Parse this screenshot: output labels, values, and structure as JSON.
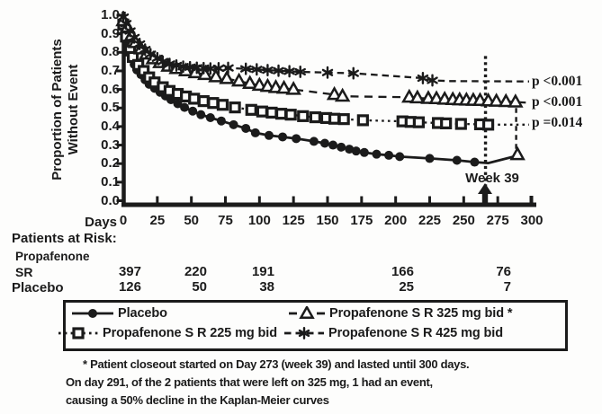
{
  "colors": {
    "ink": "#1b1b1b",
    "background": "#fdfdfc"
  },
  "y_axis": {
    "title_line1": "Proportion of Patients",
    "title_line2": "Without Event",
    "tick_labels": [
      "1.0",
      "0.9",
      "0.8",
      "0.7",
      "0.6",
      "0.5",
      "0.4",
      "0.3",
      "0.2",
      "0.1",
      "0.0"
    ]
  },
  "x_axis": {
    "title": "Days",
    "tick_labels": [
      "0",
      "25",
      "50",
      "75",
      "100",
      "125",
      "150",
      "175",
      "200",
      "225",
      "250",
      "275",
      "300"
    ]
  },
  "annotations": {
    "week39_label": "Week 39",
    "footnote_lines": [
      "* Patient closeout started on Day 273 (week 39) and lasted until 300 days.",
      "On day 291, of the 2 patients that were left on 325 mg, 1 had an event,",
      "causing a 50% decline in the Kaplan-Meier curves"
    ]
  },
  "patients_at_risk": {
    "heading": "Patients at Risk:",
    "group1_label_line1": "Propafenone",
    "group1_label_line2": "SR",
    "group1_values": [
      "397",
      "220",
      "191",
      "166",
      "76"
    ],
    "group2_label": "Placebo",
    "group2_values": [
      "126",
      "50",
      "38",
      "25",
      "7"
    ]
  },
  "legend": {
    "items": [
      {
        "label": "Placebo",
        "marker": "circle-filled",
        "line": "solid"
      },
      {
        "label": "Propafenone S R 325 mg bid *",
        "marker": "triangle-open",
        "line": "dashed"
      },
      {
        "label": "Propafenone S R 225 mg bid",
        "marker": "square-open",
        "line": "dotted"
      },
      {
        "label": "Propafenone S R 425 mg bid",
        "marker": "asterisk",
        "line": "dashed-short"
      }
    ]
  },
  "chart_data": {
    "type": "line",
    "title": "Kaplan-Meier curves: Proportion of Patients Without Event",
    "xlabel": "Days",
    "ylabel": "Proportion of Patients Without Event",
    "xlim": [
      0,
      300
    ],
    "ylim": [
      0.0,
      1.0
    ],
    "x_ticks": [
      0,
      25,
      50,
      75,
      100,
      125,
      150,
      175,
      200,
      225,
      250,
      275,
      300
    ],
    "y_ticks": [
      0.0,
      0.1,
      0.2,
      0.3,
      0.4,
      0.5,
      0.6,
      0.7,
      0.8,
      0.9,
      1.0
    ],
    "grid": false,
    "legend_position": "bottom-box",
    "week39_line": {
      "day": 266,
      "top_value": 0.78,
      "label": "Week 39"
    },
    "p_annotations": [
      {
        "text": "p <0.001",
        "value": 0.643
      },
      {
        "text": "p <0.001",
        "value": 0.528
      },
      {
        "text": "p =0.014",
        "value": 0.418
      }
    ],
    "series": [
      {
        "name": "Placebo",
        "marker": "circle-filled",
        "line_style": "solid",
        "points": [
          [
            0,
            0.95
          ],
          [
            2,
            0.86
          ],
          [
            4,
            0.8
          ],
          [
            6,
            0.765
          ],
          [
            8,
            0.735
          ],
          [
            10,
            0.705
          ],
          [
            13,
            0.68
          ],
          [
            16,
            0.652
          ],
          [
            19,
            0.628
          ],
          [
            23,
            0.606
          ],
          [
            27,
            0.585
          ],
          [
            31,
            0.565
          ],
          [
            35,
            0.545
          ],
          [
            40,
            0.523
          ],
          [
            45,
            0.503
          ],
          [
            51,
            0.483
          ],
          [
            57,
            0.464
          ],
          [
            64,
            0.448
          ],
          [
            72,
            0.43
          ],
          [
            81,
            0.41
          ],
          [
            90,
            0.39
          ],
          [
            97,
            0.366
          ],
          [
            107,
            0.352
          ],
          [
            117,
            0.344
          ],
          [
            127,
            0.335
          ],
          [
            140,
            0.32
          ],
          [
            148,
            0.31
          ],
          [
            154,
            0.3
          ],
          [
            160,
            0.289
          ],
          [
            166,
            0.278
          ],
          [
            171,
            0.268
          ],
          [
            177,
            0.26
          ],
          [
            186,
            0.251
          ],
          [
            195,
            0.245
          ],
          [
            203,
            0.238
          ],
          [
            225,
            0.228
          ],
          [
            245,
            0.218
          ],
          [
            258,
            0.208
          ]
        ],
        "line_extra": [
          [
            268,
            0.203
          ],
          [
            289,
            0.242
          ]
        ]
      },
      {
        "name": "Propafenone S R 225 mg bid",
        "marker": "square-open",
        "line_style": "dotted",
        "points": [
          [
            0,
            0.95
          ],
          [
            2,
            0.885
          ],
          [
            5,
            0.81
          ],
          [
            7,
            0.775
          ],
          [
            11,
            0.732
          ],
          [
            15,
            0.7
          ],
          [
            19,
            0.665
          ],
          [
            23,
            0.638
          ],
          [
            29,
            0.612
          ],
          [
            34,
            0.592
          ],
          [
            40,
            0.576
          ],
          [
            46,
            0.562
          ],
          [
            52,
            0.55
          ],
          [
            59,
            0.537
          ],
          [
            66,
            0.527
          ],
          [
            73,
            0.517
          ],
          [
            82,
            0.503
          ],
          [
            94,
            0.49
          ],
          [
            102,
            0.481
          ],
          [
            109,
            0.475
          ],
          [
            116,
            0.469
          ],
          [
            123,
            0.464
          ],
          [
            132,
            0.456
          ],
          [
            141,
            0.45
          ],
          [
            149,
            0.446
          ],
          [
            155,
            0.442
          ],
          [
            162,
            0.44
          ],
          [
            176,
            0.434
          ],
          [
            205,
            0.428
          ],
          [
            211,
            0.425
          ],
          [
            217,
            0.423
          ],
          [
            231,
            0.419
          ],
          [
            237,
            0.417
          ],
          [
            248,
            0.414
          ],
          [
            262,
            0.412
          ],
          [
            268,
            0.41
          ]
        ],
        "line_extra": [
          [
            298,
            0.41
          ]
        ]
      },
      {
        "name": "Propafenone S R 325 mg bid *",
        "marker": "triangle-open",
        "line_style": "dashed",
        "points": [
          [
            0,
            0.97
          ],
          [
            3,
            0.935
          ],
          [
            6,
            0.89
          ],
          [
            9,
            0.852
          ],
          [
            13,
            0.818
          ],
          [
            17,
            0.79
          ],
          [
            22,
            0.765
          ],
          [
            27,
            0.744
          ],
          [
            33,
            0.725
          ],
          [
            39,
            0.712
          ],
          [
            46,
            0.7
          ],
          [
            53,
            0.69
          ],
          [
            60,
            0.68
          ],
          [
            68,
            0.668
          ],
          [
            76,
            0.658
          ],
          [
            85,
            0.645
          ],
          [
            93,
            0.632
          ],
          [
            100,
            0.622
          ],
          [
            106,
            0.616
          ],
          [
            112,
            0.61
          ],
          [
            118,
            0.606
          ],
          [
            125,
            0.6
          ],
          [
            155,
            0.572
          ],
          [
            161,
            0.563
          ],
          [
            210,
            0.558
          ],
          [
            216,
            0.554
          ],
          [
            224,
            0.551
          ],
          [
            230,
            0.55
          ],
          [
            236,
            0.547
          ],
          [
            242,
            0.545
          ],
          [
            247,
            0.543
          ],
          [
            252,
            0.542
          ],
          [
            257,
            0.541
          ],
          [
            262,
            0.54
          ],
          [
            268,
            0.538
          ],
          [
            274,
            0.536
          ],
          [
            281,
            0.534
          ],
          [
            288,
            0.532
          ]
        ],
        "line_extra": [
          [
            298,
            0.528
          ]
        ],
        "drop": {
          "day": 288.5,
          "from_value": 0.5,
          "to_value": 0.275,
          "end_marker": [
            289.5,
            0.248
          ]
        }
      },
      {
        "name": "Propafenone S R 425 mg bid",
        "marker": "asterisk",
        "line_style": "dashed-short",
        "points": [
          [
            0,
            0.99
          ],
          [
            2,
            0.955
          ],
          [
            5,
            0.915
          ],
          [
            8,
            0.88
          ],
          [
            12,
            0.845
          ],
          [
            16,
            0.815
          ],
          [
            20,
            0.79
          ],
          [
            25,
            0.768
          ],
          [
            29,
            0.75
          ],
          [
            34,
            0.737
          ],
          [
            39,
            0.729
          ],
          [
            44,
            0.723
          ],
          [
            49,
            0.72
          ],
          [
            54,
            0.717
          ],
          [
            59,
            0.715
          ],
          [
            64,
            0.713
          ],
          [
            70,
            0.714
          ],
          [
            77,
            0.716
          ],
          [
            90,
            0.711
          ],
          [
            98,
            0.708
          ],
          [
            106,
            0.704
          ],
          [
            114,
            0.701
          ],
          [
            122,
            0.698
          ],
          [
            130,
            0.695
          ],
          [
            150,
            0.691
          ],
          [
            169,
            0.687
          ],
          [
            220,
            0.661
          ],
          [
            227,
            0.649
          ]
        ],
        "line_extra": [
          [
            240,
            0.645
          ],
          [
            298,
            0.643
          ]
        ]
      }
    ],
    "patients_at_risk_days": [
      0,
      50,
      100,
      200,
      275
    ]
  }
}
